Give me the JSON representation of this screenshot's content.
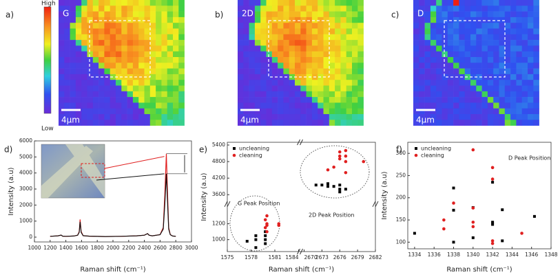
{
  "colorbar": {
    "high": "High",
    "low": "Low"
  },
  "maps": [
    {
      "panel": "a)",
      "label": "G",
      "scale": "4μm"
    },
    {
      "panel": "b)",
      "label": "2D",
      "scale": "4μm"
    },
    {
      "panel": "c)",
      "label": "D",
      "scale": "4μm"
    }
  ],
  "chart_data": [
    {
      "type": "line",
      "panel": "d)",
      "xlabel": "Raman shift (cm⁻¹)",
      "ylabel": "Intensity (a.u)",
      "x": [
        1200,
        1300,
        1340,
        1360,
        1400,
        1500,
        1550,
        1570,
        1582,
        1595,
        1620,
        1700,
        1900,
        2100,
        2300,
        2400,
        2440,
        2460,
        2500,
        2600,
        2640,
        2660,
        2680,
        2695,
        2710,
        2730,
        2760,
        2800
      ],
      "series": [
        {
          "color": "#e02020",
          "values": [
            50,
            80,
            130,
            60,
            50,
            70,
            120,
            350,
            1100,
            350,
            90,
            60,
            40,
            50,
            80,
            120,
            220,
            120,
            80,
            160,
            600,
            2600,
            5200,
            2800,
            600,
            160,
            70,
            50
          ]
        },
        {
          "color": "#111111",
          "values": [
            50,
            80,
            130,
            60,
            50,
            70,
            120,
            300,
            950,
            300,
            90,
            60,
            40,
            50,
            80,
            120,
            220,
            120,
            80,
            150,
            500,
            2000,
            3950,
            2200,
            500,
            150,
            70,
            50
          ]
        }
      ],
      "xlim": [
        1000,
        3000
      ],
      "xticks": [
        1000,
        1200,
        1400,
        1600,
        1800,
        2000,
        2200,
        2400,
        2600,
        2800,
        3000
      ],
      "ylim": [
        -300,
        6000
      ],
      "yticks": [
        0,
        1000,
        2000,
        3000,
        4000,
        5000,
        6000
      ]
    },
    {
      "type": "broken-scatter",
      "panel": "e)",
      "xlabel": "Raman shift (cm⁻¹)",
      "ylabel": "Intensity (a.u)",
      "annotations": [
        "G Peak Position",
        "2D Peak Position"
      ],
      "series": [
        {
          "name": "uncleaning",
          "color": "#000000",
          "marker": "square",
          "x": [
            1577.5,
            1578.6,
            1578.6,
            1578.6,
            1579.8,
            1579.8,
            1579.8,
            1579.8,
            2672,
            2673,
            2674,
            2674,
            2675,
            2676,
            2676,
            2676,
            2677
          ],
          "values": [
            980,
            900,
            1000,
            1050,
            950,
            1000,
            1050,
            1100,
            3950,
            3950,
            4000,
            3900,
            3900,
            3950,
            3800,
            3700,
            3800
          ]
        },
        {
          "name": "cleaning",
          "color": "#e02020",
          "marker": "circle",
          "x": [
            1579.8,
            1580,
            1580,
            1580,
            1580,
            1581.5,
            1581.5,
            1579.8,
            2674,
            2675,
            2676,
            2676,
            2676,
            2677,
            2677,
            2677,
            2677,
            2680
          ],
          "values": [
            1150,
            1180,
            1200,
            1100,
            1300,
            1180,
            1200,
            1250,
            4500,
            4600,
            4900,
            5000,
            5150,
            4800,
            5000,
            5200,
            4400,
            4800
          ]
        }
      ],
      "xlim": [
        [
          1575,
          1584
        ],
        [
          2670,
          2682
        ]
      ],
      "xticks": [
        [
          1575,
          1578,
          1581,
          1584
        ],
        [
          2670,
          2673,
          2676,
          2679,
          2682
        ]
      ],
      "ylim": [
        [
          850,
          1400
        ],
        [
          3400,
          5500
        ]
      ],
      "yticks": [
        [
          1000,
          1200
        ],
        [
          3600,
          4200,
          4800,
          5400
        ]
      ]
    },
    {
      "type": "scatter",
      "panel": "f)",
      "xlabel": "Raman shift (cm⁻¹)",
      "ylabel": "Intensity (a.u)",
      "annotations": [
        "D Peak Position"
      ],
      "series": [
        {
          "name": "uncleaning",
          "color": "#000000",
          "marker": "square",
          "x": [
            1334,
            1338,
            1338,
            1338,
            1340,
            1340,
            1342,
            1342,
            1342,
            1343,
            1343,
            1346.3
          ],
          "values": [
            120,
            100,
            172,
            222,
            178,
            110,
            140,
            145,
            235,
            103,
            173,
            158
          ]
        },
        {
          "name": "cleaning",
          "color": "#e02020",
          "marker": "circle",
          "x": [
            1337,
            1337,
            1338,
            1340,
            1340,
            1340,
            1340,
            1342,
            1342,
            1342,
            1342,
            1345
          ],
          "values": [
            150,
            130,
            188,
            308,
            177,
            145,
            135,
            268,
            242,
            103,
            97,
            120
          ]
        }
      ],
      "xlim": [
        1333.3,
        1348
      ],
      "xticks": [
        1334,
        1336,
        1338,
        1340,
        1342,
        1344,
        1346,
        1348
      ],
      "ylim": [
        85,
        325
      ],
      "yticks": [
        100,
        150,
        200,
        250,
        300
      ]
    }
  ]
}
